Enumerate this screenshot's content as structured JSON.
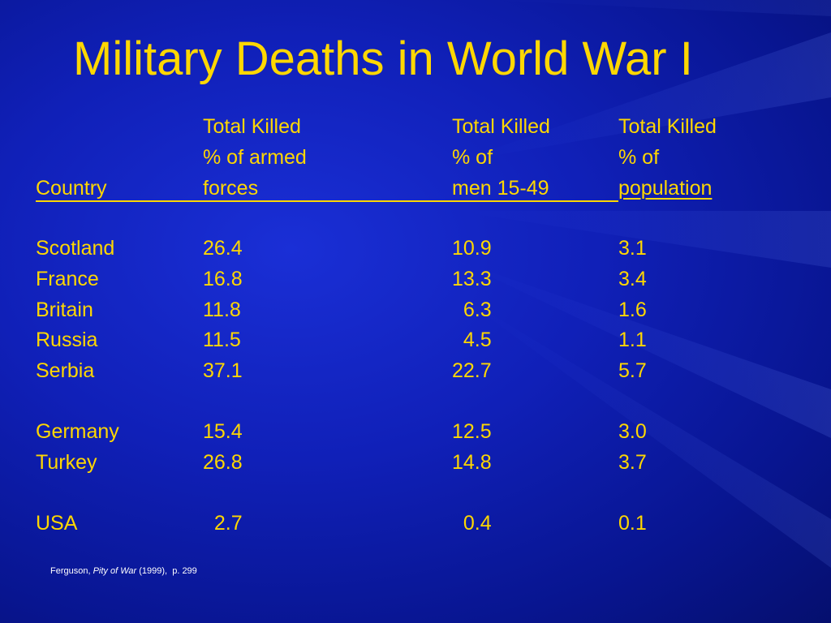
{
  "slide": {
    "title": "Military Deaths in World War I"
  },
  "header": {
    "col_a": [
      "Total Killed",
      "% of armed",
      "forces"
    ],
    "col_b": [
      "Total Killed",
      "% of",
      "men 15-49"
    ],
    "col_c": [
      "Total Killed",
      "% of",
      "population"
    ],
    "country_label": "Country"
  },
  "rows": [
    {
      "country": "Scotland",
      "a": "26.4",
      "b": "10.9",
      "c": "3.1"
    },
    {
      "country": "France",
      "a": "16.8",
      "b": "13.3",
      "c": "3.4"
    },
    {
      "country": "Britain",
      "a": "11.8",
      "b": "  6.3",
      "c": "1.6"
    },
    {
      "country": "Russia",
      "a": "11.5",
      "b": "  4.5",
      "c": "1.1"
    },
    {
      "country": "Serbia",
      "a": "37.1",
      "b": "22.7",
      "c": "5.7"
    },
    {
      "country": "Germany",
      "a": "15.4",
      "b": "12.5",
      "c": "3.0"
    },
    {
      "country": "Turkey",
      "a": "26.8",
      "b": "14.8",
      "c": "3.7"
    },
    {
      "country": "USA",
      "a": "  2.7",
      "b": "  0.4",
      "c": "0.1"
    }
  ],
  "footnote": {
    "author": "Ferguson, ",
    "work": "Pity of War",
    "details": " (1999),  p. 299"
  },
  "colors": {
    "background": "#1020b8",
    "text": "#ffd700",
    "footnote": "#ffffff"
  }
}
